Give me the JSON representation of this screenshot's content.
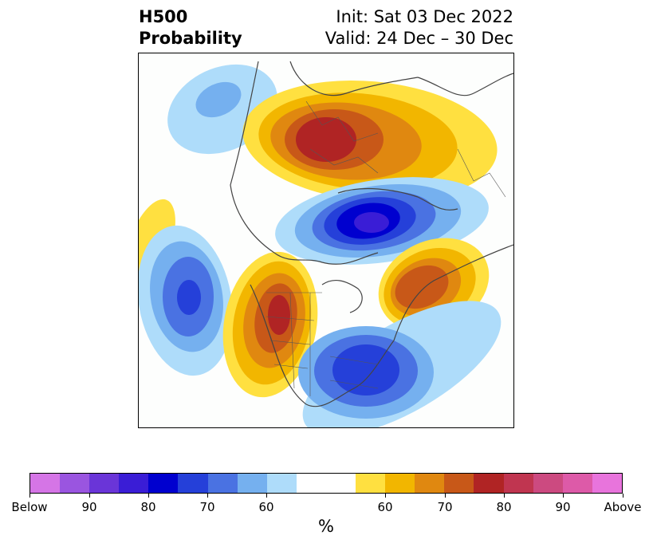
{
  "title": {
    "left_line1": "H500",
    "left_line2": "Probability",
    "right_line1": "Init: Sat 03 Dec 2022",
    "right_line2": "Valid: 24 Dec – 30 Dec"
  },
  "colorbar": {
    "unit": "%",
    "segments": [
      {
        "color": "#d575e6",
        "width": 1
      },
      {
        "color": "#9a55e0",
        "width": 1
      },
      {
        "color": "#6a35d8",
        "width": 1
      },
      {
        "color": "#3a1dd6",
        "width": 1
      },
      {
        "color": "#0000cf",
        "width": 1
      },
      {
        "color": "#2540d9",
        "width": 1
      },
      {
        "color": "#4a72e2",
        "width": 1
      },
      {
        "color": "#75b0ef",
        "width": 1
      },
      {
        "color": "#aedcfa",
        "width": 1
      },
      {
        "color": "#ffffff",
        "width": 2
      },
      {
        "color": "#ffe040",
        "width": 1
      },
      {
        "color": "#f2b600",
        "width": 1
      },
      {
        "color": "#e08810",
        "width": 1
      },
      {
        "color": "#c85818",
        "width": 1
      },
      {
        "color": "#b02424",
        "width": 1
      },
      {
        "color": "#c03550",
        "width": 1
      },
      {
        "color": "#cc4a80",
        "width": 1
      },
      {
        "color": "#dd5aa8",
        "width": 1
      },
      {
        "color": "#e874dc",
        "width": 1
      }
    ],
    "ticks": [
      "Below",
      "90",
      "80",
      "70",
      "60",
      "60",
      "70",
      "80",
      "90",
      "Above"
    ]
  }
}
